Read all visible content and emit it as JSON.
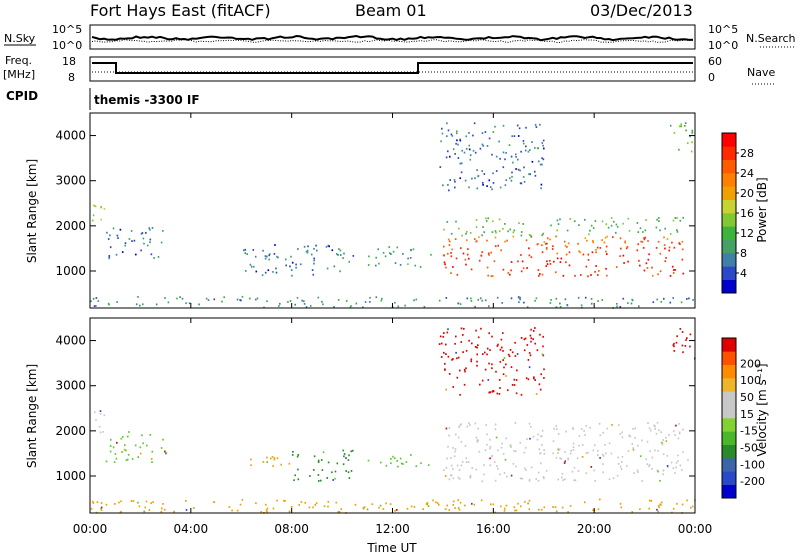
{
  "header": {
    "station": "Fort Hays East (fitACF)",
    "beam": "Beam 01",
    "date": "03/Dec/2013"
  },
  "noise_panel": {
    "left_label": "N.Sky",
    "right_label": "N.Search",
    "left_ticks": [
      "10^5",
      "10^0"
    ],
    "right_ticks": [
      "10^5",
      "10^0"
    ]
  },
  "freq_panel": {
    "left_label_line1": "Freq.",
    "left_label_line2": "[MHz]",
    "right_label": "Nave",
    "left_ticks": [
      "18",
      "8"
    ],
    "right_ticks": [
      "60",
      "0"
    ]
  },
  "cpid": {
    "label": "CPID",
    "text": "themis -3300 IF"
  },
  "chart_data": [
    {
      "type": "heatmap",
      "title": "",
      "xlabel": "",
      "ylabel": "Slant Range [km]",
      "xlim": [
        0,
        24
      ],
      "ylim": [
        180,
        4500
      ],
      "x_ticks": [
        "00:00",
        "04:00",
        "08:00",
        "12:00",
        "16:00",
        "20:00",
        "00:00"
      ],
      "y_ticks": [
        1000,
        2000,
        3000,
        4000
      ],
      "colorbar": {
        "label": "Power [dB]",
        "ticks": [
          4,
          8,
          12,
          16,
          20,
          24,
          28
        ],
        "range": [
          0,
          32
        ],
        "colors": [
          "#0000cc",
          "#2a48c8",
          "#3f7fa8",
          "#44a064",
          "#3cb43c",
          "#82c832",
          "#c8d232",
          "#f0a000",
          "#ff8000",
          "#ff5a00",
          "#ff2a00",
          "#ff0000"
        ]
      },
      "regions": [
        {
          "t0": 0.0,
          "t1": 0.6,
          "r0": 1900,
          "r1": 2500,
          "value": 18
        },
        {
          "t0": 0.6,
          "t1": 3.0,
          "r0": 1300,
          "r1": 2000,
          "value": 6
        },
        {
          "t0": 6.0,
          "t1": 10.5,
          "r0": 900,
          "r1": 1600,
          "value": 6
        },
        {
          "t0": 11.0,
          "t1": 13.5,
          "r0": 1100,
          "r1": 1550,
          "value": 10
        },
        {
          "t0": 14.0,
          "t1": 23.7,
          "r0": 900,
          "r1": 1800,
          "value": 24
        },
        {
          "t0": 14.0,
          "t1": 23.5,
          "r0": 1800,
          "r1": 2200,
          "value": 12
        },
        {
          "t0": 0.0,
          "t1": 24.0,
          "r0": 200,
          "r1": 450,
          "value": 8
        },
        {
          "t0": 13.8,
          "t1": 18.0,
          "r0": 2800,
          "r1": 4300,
          "value": 6
        },
        {
          "t0": 23.0,
          "t1": 24.0,
          "r0": 3600,
          "r1": 4300,
          "value": 12
        }
      ]
    },
    {
      "type": "heatmap",
      "title": "",
      "xlabel": "Time UT",
      "ylabel": "Slant Range [km]",
      "xlim": [
        0,
        24
      ],
      "ylim": [
        180,
        4500
      ],
      "x_ticks": [
        "00:00",
        "04:00",
        "08:00",
        "12:00",
        "16:00",
        "20:00",
        "00:00"
      ],
      "y_ticks": [
        1000,
        2000,
        3000,
        4000
      ],
      "colorbar": {
        "label": "Velocity [m s⁻¹]",
        "ticks": [
          "200",
          "100",
          "50",
          "15",
          "-15",
          "-50",
          "-100",
          "-200"
        ],
        "colors": [
          "#0000cc",
          "#2a48c8",
          "#3c64a8",
          "#2a8a2a",
          "#4ab82a",
          "#82d232",
          "#c8c8c8",
          "#c8c8c8",
          "#f0b42a",
          "#ff8c00",
          "#ff5000",
          "#e00000"
        ]
      },
      "regions": [
        {
          "t0": 0.0,
          "t1": 0.6,
          "r0": 1900,
          "r1": 2500,
          "value": "gray"
        },
        {
          "t0": 0.6,
          "t1": 3.0,
          "r0": 1300,
          "r1": 2000,
          "value": "green"
        },
        {
          "t0": 6.0,
          "t1": 8.0,
          "r0": 1200,
          "r1": 1500,
          "value": "orange"
        },
        {
          "t0": 8.0,
          "t1": 10.5,
          "r0": 900,
          "r1": 1600,
          "value": "darkgreen"
        },
        {
          "t0": 11.0,
          "t1": 13.5,
          "r0": 1200,
          "r1": 1500,
          "value": "green"
        },
        {
          "t0": 14.0,
          "t1": 23.7,
          "r0": 900,
          "r1": 1800,
          "value": "gray"
        },
        {
          "t0": 14.0,
          "t1": 23.5,
          "r0": 1800,
          "r1": 2200,
          "value": "gray"
        },
        {
          "t0": 0.0,
          "t1": 24.0,
          "r0": 200,
          "r1": 500,
          "value": "orange"
        },
        {
          "t0": 13.8,
          "t1": 18.0,
          "r0": 2800,
          "r1": 4300,
          "value": "red"
        },
        {
          "t0": 23.0,
          "t1": 24.0,
          "r0": 3600,
          "r1": 4300,
          "value": "red"
        }
      ]
    }
  ]
}
